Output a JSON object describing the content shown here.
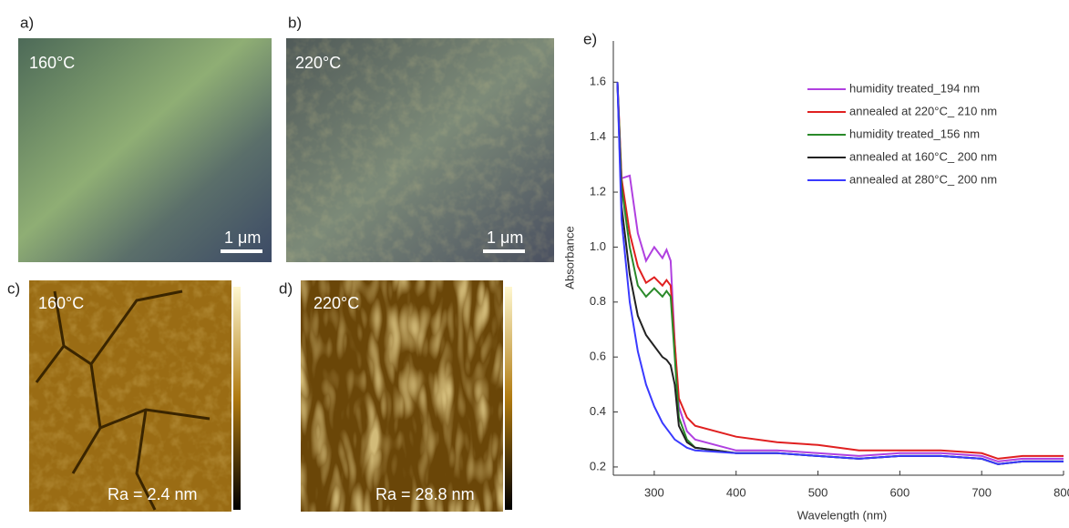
{
  "panels": [
    {
      "label": "a)",
      "temperature": "160°C",
      "scale": "1 μm"
    },
    {
      "label": "b)",
      "temperature": "220°C",
      "scale": "1 μm"
    },
    {
      "label": "c)",
      "temperature": "160°C",
      "roughness": "Ra = 2.4 nm"
    },
    {
      "label": "d)",
      "temperature": "220°C",
      "roughness": "Ra = 28.8 nm"
    }
  ],
  "chart_data": {
    "type": "line",
    "panel_label": "e)",
    "xlabel": "Wavelength (nm)",
    "ylabel": "Absorbance",
    "x": [
      255,
      260,
      270,
      280,
      290,
      300,
      310,
      315,
      320,
      325,
      330,
      340,
      350,
      400,
      450,
      500,
      550,
      600,
      650,
      700,
      720,
      750,
      800
    ],
    "series": [
      {
        "name": "humidity treated_194 nm",
        "color": "#b040e0",
        "values": [
          1.6,
          1.25,
          1.26,
          1.05,
          0.95,
          1.0,
          0.96,
          0.99,
          0.95,
          0.65,
          0.42,
          0.33,
          0.3,
          0.26,
          0.26,
          0.25,
          0.24,
          0.25,
          0.25,
          0.24,
          0.22,
          0.23,
          0.23
        ]
      },
      {
        "name": "annealed at 220°C_ 210 nm",
        "color": "#e02020",
        "values": [
          1.6,
          1.25,
          1.05,
          0.93,
          0.87,
          0.89,
          0.86,
          0.88,
          0.86,
          0.65,
          0.45,
          0.38,
          0.35,
          0.31,
          0.29,
          0.28,
          0.26,
          0.26,
          0.26,
          0.25,
          0.23,
          0.24,
          0.24
        ]
      },
      {
        "name": "humidity treated_156 nm",
        "color": "#2a8a2a",
        "values": [
          1.6,
          1.22,
          1.0,
          0.86,
          0.82,
          0.85,
          0.82,
          0.84,
          0.82,
          0.6,
          0.38,
          0.3,
          0.27,
          0.25,
          0.25,
          0.24,
          0.23,
          0.24,
          0.24,
          0.23,
          0.21,
          0.22,
          0.22
        ]
      },
      {
        "name": "annealed at 160°C_ 200 nm",
        "color": "#222222",
        "values": [
          1.6,
          1.15,
          0.9,
          0.75,
          0.68,
          0.64,
          0.6,
          0.59,
          0.57,
          0.5,
          0.35,
          0.29,
          0.27,
          0.25,
          0.25,
          0.24,
          0.23,
          0.24,
          0.24,
          0.23,
          0.21,
          0.22,
          0.22
        ]
      },
      {
        "name": "annealed at 280°C_ 200 nm",
        "color": "#3a3aff",
        "values": [
          1.6,
          1.1,
          0.8,
          0.62,
          0.5,
          0.42,
          0.36,
          0.34,
          0.32,
          0.3,
          0.29,
          0.27,
          0.26,
          0.25,
          0.25,
          0.24,
          0.23,
          0.24,
          0.24,
          0.23,
          0.21,
          0.22,
          0.22
        ]
      }
    ],
    "xlim": [
      250,
      800
    ],
    "xticks": [
      300,
      400,
      500,
      600,
      700,
      800
    ],
    "ylim": [
      0.17,
      1.75
    ],
    "yticks": [
      0.2,
      0.4,
      0.6,
      0.8,
      {
        "value": 1,
        "label": "1.0"
      },
      1.2,
      1.4,
      1.6
    ],
    "legend": "upper right",
    "grid": false
  }
}
